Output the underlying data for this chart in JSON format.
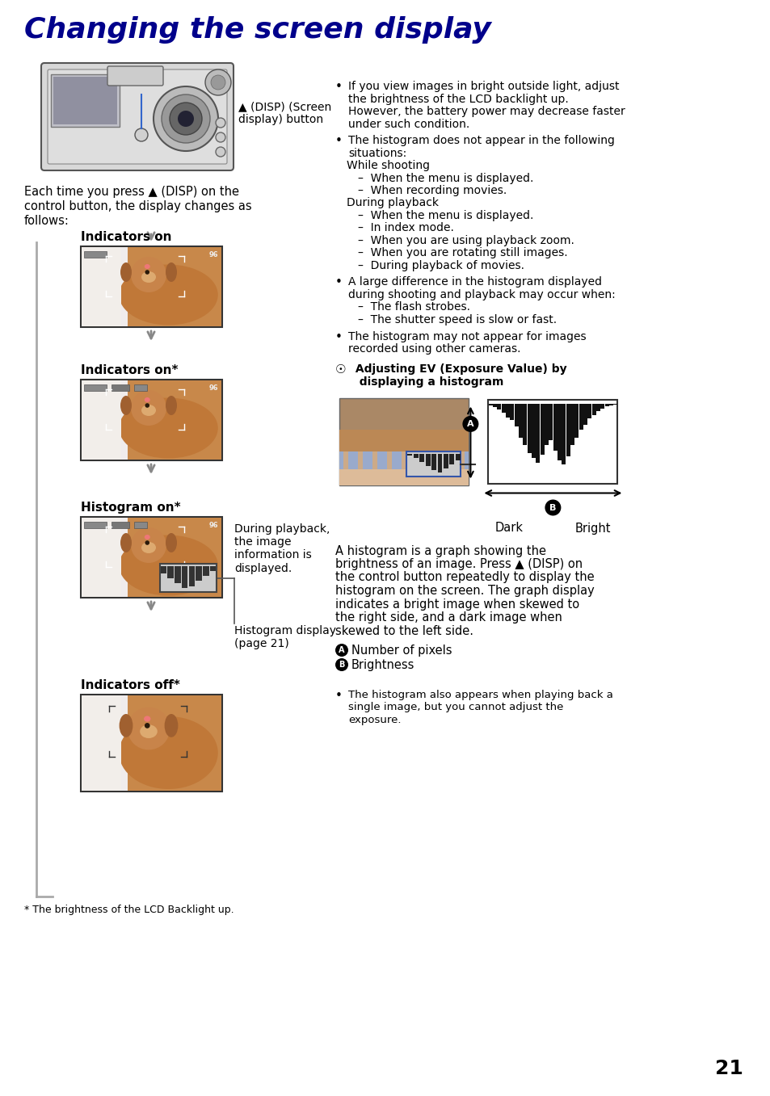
{
  "title": "Changing the screen display",
  "title_color": "#00008B",
  "title_fontsize": 26,
  "background_color": "#FFFFFF",
  "page_number": "21",
  "left_column": {
    "intro_text": "Each time you press ▲ (DISP) on the\ncontrol button, the display changes as\nfollows:",
    "camera_label": "▲ (DISP) (Screen\ndisplay) button",
    "sections": [
      {
        "label": "Indicators on"
      },
      {
        "label": "Indicators on*"
      },
      {
        "label": "Histogram on*"
      },
      {
        "label": "Indicators off*"
      }
    ],
    "playback_text": "During playback,\nthe image\ninformation is\ndisplayed.",
    "histogram_display_text": "Histogram display\n(page 21)",
    "footnote": "* The brightness of the LCD Backlight up."
  },
  "right_column": {
    "bullet1_lines": [
      "If you view images in bright outside light, adjust",
      "the brightness of the LCD backlight up.",
      "However, the battery power may decrease faster",
      "under such condition."
    ],
    "bullet2_lines": [
      "The histogram does not appear in the following",
      "situations:",
      "While shooting",
      "–  When the menu is displayed.",
      "–  When recording movies.",
      "During playback",
      "–  When the menu is displayed.",
      "–  In index mode.",
      "–  When you are using playback zoom.",
      "–  When you are rotating still images.",
      "–  During playback of movies."
    ],
    "bullet3_lines": [
      "A large difference in the histogram displayed",
      "during shooting and playback may occur when:",
      "–  The flash strobes.",
      "–  The shutter speed is slow or fast."
    ],
    "bullet4_lines": [
      "The histogram may not appear for images",
      "recorded using other cameras."
    ],
    "tip_title_line1": " Adjusting EV (Exposure Value) by",
    "tip_title_line2": "  displaying a histogram",
    "histogram_labels": [
      "Dark",
      "Bright"
    ],
    "description_lines": [
      "A histogram is a graph showing the",
      "brightness of an image. Press ▲ (DISP) on",
      "the control button repeatedly to display the",
      "histogram on the screen. The graph display",
      "indicates a bright image when skewed to",
      "the right side, and a dark image when",
      "skewed to the left side."
    ],
    "pixel_label": " Number of pixels",
    "brightness_label": " Brightness",
    "final_bullet_lines": [
      "The histogram also appears when playing back a",
      "single image, but you cannot adjust the",
      "exposure."
    ]
  }
}
